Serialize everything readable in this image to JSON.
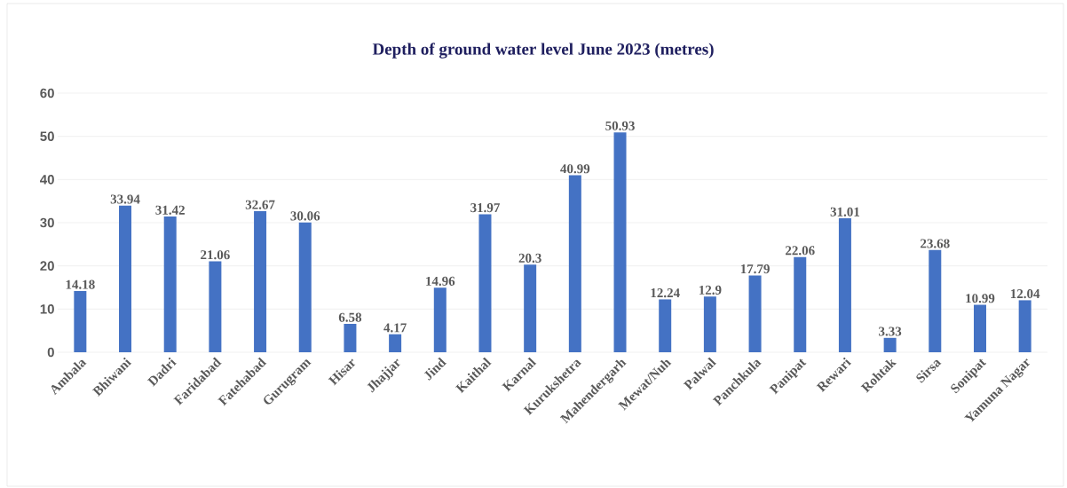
{
  "chart_data": {
    "type": "bar",
    "title": "Depth of ground water level June 2023 (metres)",
    "categories": [
      "Ambala",
      "Bhiwani",
      "Dadri",
      "Faridabad",
      "Fatehabad",
      "Gurugram",
      "Hisar",
      "Jhajjar",
      "Jind",
      "Kaithal",
      "Karnal",
      "Kurukshetra",
      "Mahendergarh",
      "Mewat/Nuh",
      "Palwal",
      "Panchkula",
      "Panipat",
      "Rewari",
      "Rohtak",
      "Sirsa",
      "Sonipat",
      "Yamuna Nagar"
    ],
    "values": [
      14.18,
      33.94,
      31.42,
      21.06,
      32.67,
      30.06,
      6.58,
      4.17,
      14.96,
      31.97,
      20.3,
      40.99,
      50.93,
      12.24,
      12.9,
      17.79,
      22.06,
      31.01,
      3.33,
      23.68,
      10.99,
      12.04
    ],
    "color": "#4472c4",
    "ylim": [
      0,
      60
    ],
    "yticks": [
      0,
      10,
      20,
      30,
      40,
      50,
      60
    ],
    "grid": "y",
    "data_labels": true
  }
}
